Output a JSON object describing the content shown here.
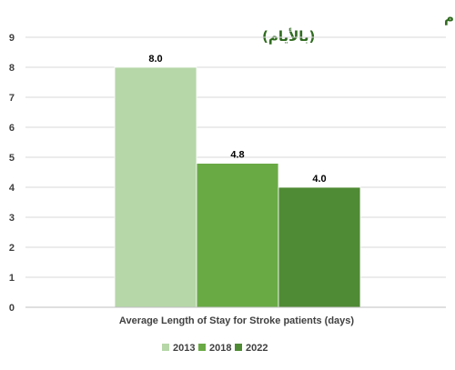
{
  "chart_data": {
    "type": "bar",
    "title_lines": [
      "متوسط مدة إقامة مرضى السكتة الدماغية بمستشفى حمد العام",
      "(بالأيام)"
    ],
    "xlabel": "Average Length of Stay for Stroke patients (days)",
    "ylabel": "",
    "ylim": [
      0,
      9
    ],
    "y_ticks": [
      0,
      1,
      2,
      3,
      4,
      5,
      6,
      7,
      8,
      9
    ],
    "grid": true,
    "legend_position": "bottom",
    "category": "Average Length of Stay for Stroke patients (days)",
    "series": [
      {
        "name": "2013",
        "values": [
          8.0
        ],
        "color": "#b6d7a8",
        "label": "8.0"
      },
      {
        "name": "2018",
        "values": [
          4.8
        ],
        "color": "#6aaa45",
        "label": "4.8"
      },
      {
        "name": "2022",
        "values": [
          4.0
        ],
        "color": "#4f8a34",
        "label": "4.0"
      }
    ]
  }
}
